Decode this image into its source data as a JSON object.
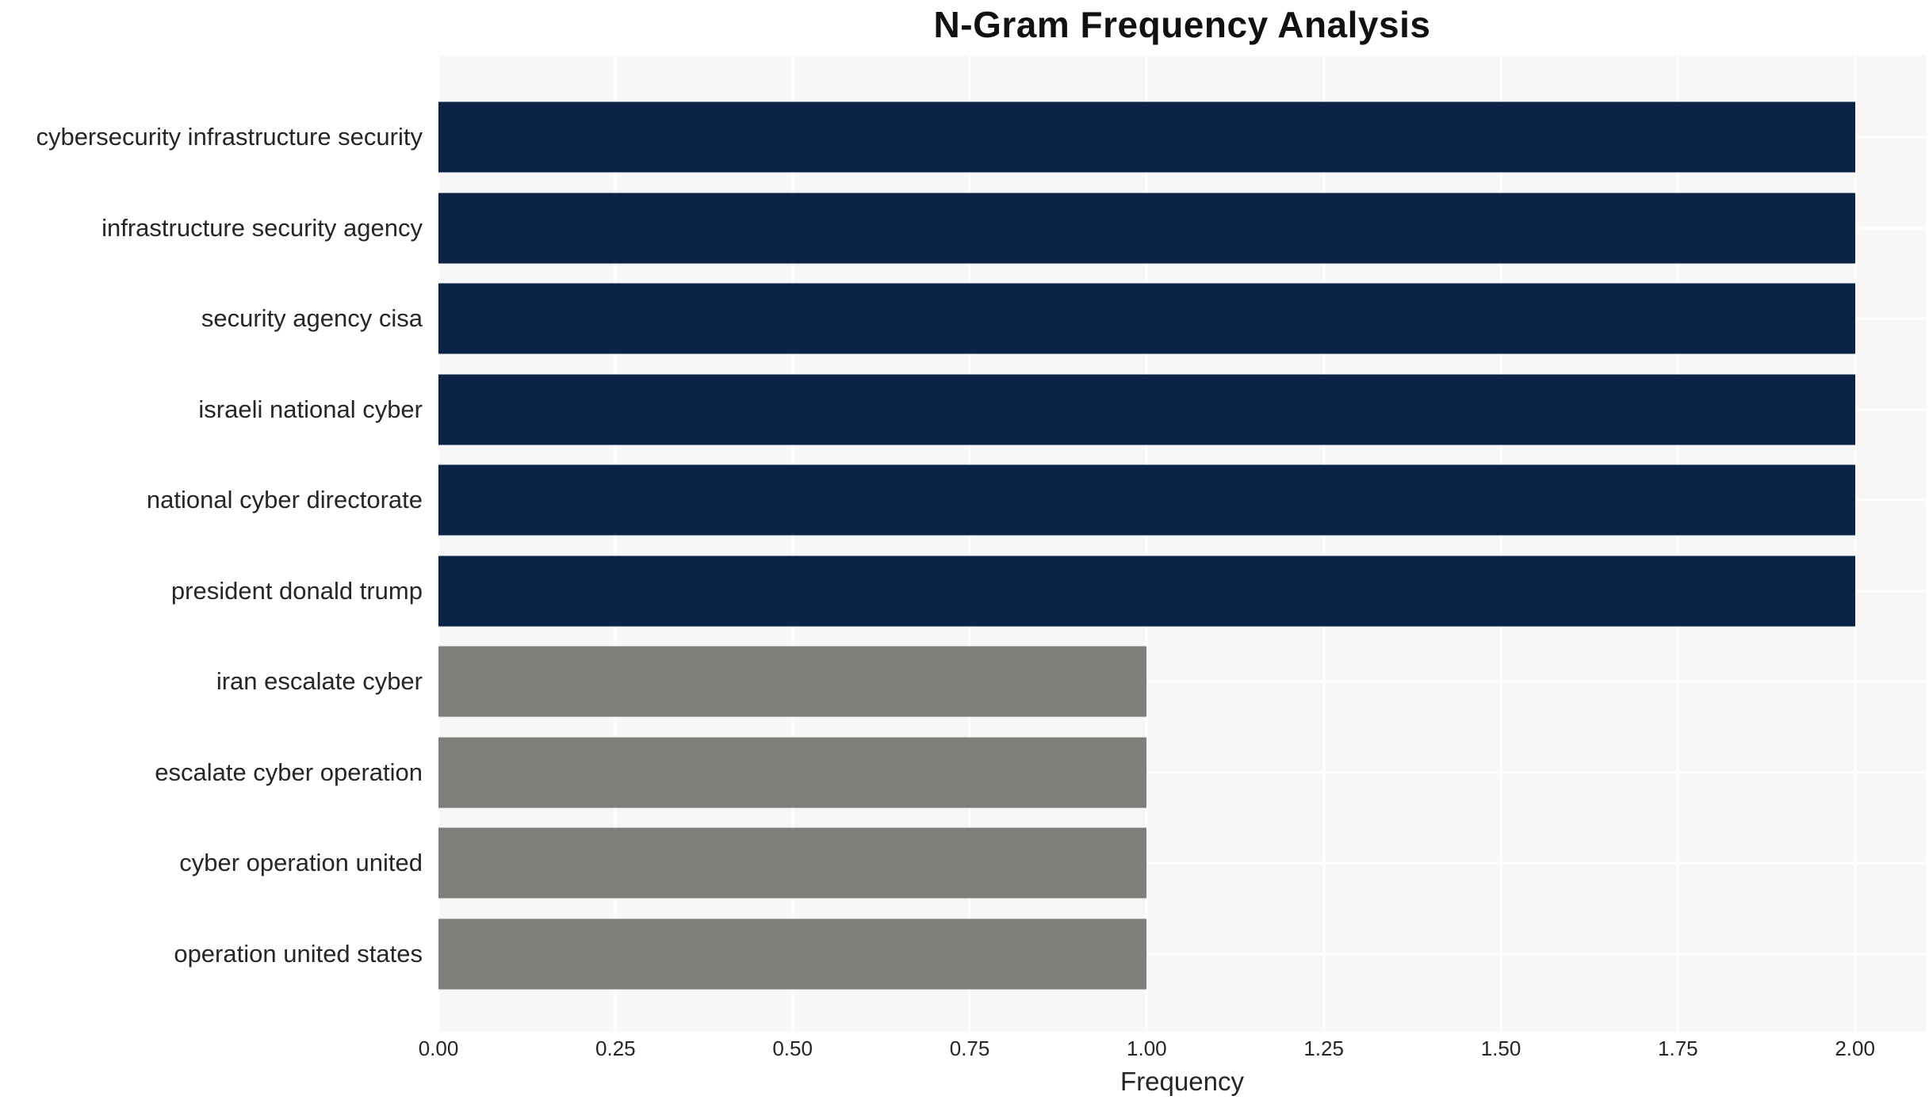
{
  "chart_data": {
    "type": "bar",
    "orientation": "horizontal",
    "title": "N-Gram Frequency Analysis",
    "xlabel": "Frequency",
    "ylabel": "",
    "categories": [
      "cybersecurity infrastructure security",
      "infrastructure security agency",
      "security agency cisa",
      "israeli national cyber",
      "national cyber directorate",
      "president donald trump",
      "iran escalate cyber",
      "escalate cyber operation",
      "cyber operation united",
      "operation united states"
    ],
    "values": [
      2.0,
      2.0,
      2.0,
      2.0,
      2.0,
      2.0,
      1.0,
      1.0,
      1.0,
      1.0
    ],
    "bar_colors": [
      "#0a2347",
      "#0a2347",
      "#0a2347",
      "#0a2347",
      "#0a2347",
      "#0a2347",
      "#807e7a",
      "#807e7a",
      "#807e7a",
      "#807e7a"
    ],
    "xlim": [
      0,
      2.1
    ],
    "xtick_values": [
      0.0,
      0.25,
      0.5,
      0.75,
      1.0,
      1.25,
      1.5,
      1.75,
      2.0
    ],
    "xtick_labels": [
      "0.00",
      "0.25",
      "0.50",
      "0.75",
      "1.00",
      "1.25",
      "1.50",
      "1.75",
      "2.00"
    ],
    "grid": true,
    "legend_position": "none",
    "colors": {
      "high_frequency_bar": "#0a2347",
      "low_frequency_bar": "#807e7a",
      "plot_background": "#f7f7f7",
      "gridline": "#ffffff",
      "text": "#262626",
      "title_text": "#111111"
    }
  }
}
